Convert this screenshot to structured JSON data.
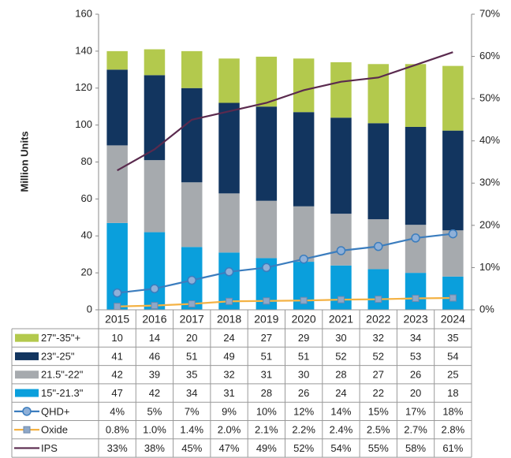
{
  "chart_data": {
    "type": "bar",
    "y_label": "Million Units",
    "categories": [
      "2015",
      "2016",
      "2017",
      "2018",
      "2019",
      "2020",
      "2021",
      "2022",
      "2023",
      "2024"
    ],
    "series": [
      {
        "name": "27\"-35\"+",
        "type": "bar",
        "color": "#b3c94d",
        "values": [
          10,
          14,
          20,
          24,
          27,
          29,
          30,
          32,
          34,
          35
        ]
      },
      {
        "name": "23\"-25\"",
        "type": "bar",
        "color": "#12355f",
        "values": [
          41,
          46,
          51,
          49,
          51,
          51,
          52,
          52,
          53,
          54
        ]
      },
      {
        "name": "21.5\"-22\"",
        "type": "bar",
        "color": "#a6aaae",
        "values": [
          42,
          39,
          35,
          32,
          31,
          30,
          28,
          27,
          26,
          25
        ]
      },
      {
        "name": "15\"-21.3\"",
        "type": "bar",
        "color": "#0a9fdc",
        "values": [
          47,
          42,
          34,
          31,
          28,
          26,
          24,
          22,
          20,
          18
        ]
      },
      {
        "name": "QHD+",
        "type": "line",
        "axis": "y2",
        "marker": "circle",
        "color": "#3b7dbe",
        "values": [
          4,
          5,
          7,
          9,
          10,
          12,
          14,
          15,
          17,
          18
        ],
        "value_labels": [
          "4%",
          "5%",
          "7%",
          "9%",
          "10%",
          "12%",
          "14%",
          "15%",
          "17%",
          "18%"
        ]
      },
      {
        "name": "Oxide",
        "type": "line",
        "axis": "y2",
        "marker": "square",
        "color": "#f4b244",
        "values": [
          0.8,
          1.0,
          1.4,
          2.0,
          2.1,
          2.2,
          2.4,
          2.5,
          2.7,
          2.8
        ],
        "value_labels": [
          "0.8%",
          "1.0%",
          "1.4%",
          "2.0%",
          "2.1%",
          "2.2%",
          "2.4%",
          "2.5%",
          "2.7%",
          "2.8%"
        ]
      },
      {
        "name": "IPS",
        "type": "line",
        "axis": "y2",
        "marker": "none",
        "color": "#5a2a4e",
        "values": [
          33,
          38,
          45,
          47,
          49,
          52,
          54,
          55,
          58,
          61
        ],
        "value_labels": [
          "33%",
          "38%",
          "45%",
          "47%",
          "49%",
          "52%",
          "54%",
          "55%",
          "58%",
          "61%"
        ]
      }
    ],
    "ylim": [
      0,
      160
    ],
    "yticks": [
      0,
      20,
      40,
      60,
      80,
      100,
      120,
      140,
      160
    ],
    "y2lim": [
      0,
      70
    ],
    "y2ticks": [
      {
        "value": 0,
        "label": "0%"
      },
      {
        "value": 10,
        "label": "10%"
      },
      {
        "value": 20,
        "label": "20%"
      },
      {
        "value": 30,
        "label": "30%"
      },
      {
        "value": 40,
        "label": "40%"
      },
      {
        "value": 50,
        "label": "50%"
      },
      {
        "value": 60,
        "label": "60%"
      },
      {
        "value": 70,
        "label": "70%"
      }
    ]
  }
}
